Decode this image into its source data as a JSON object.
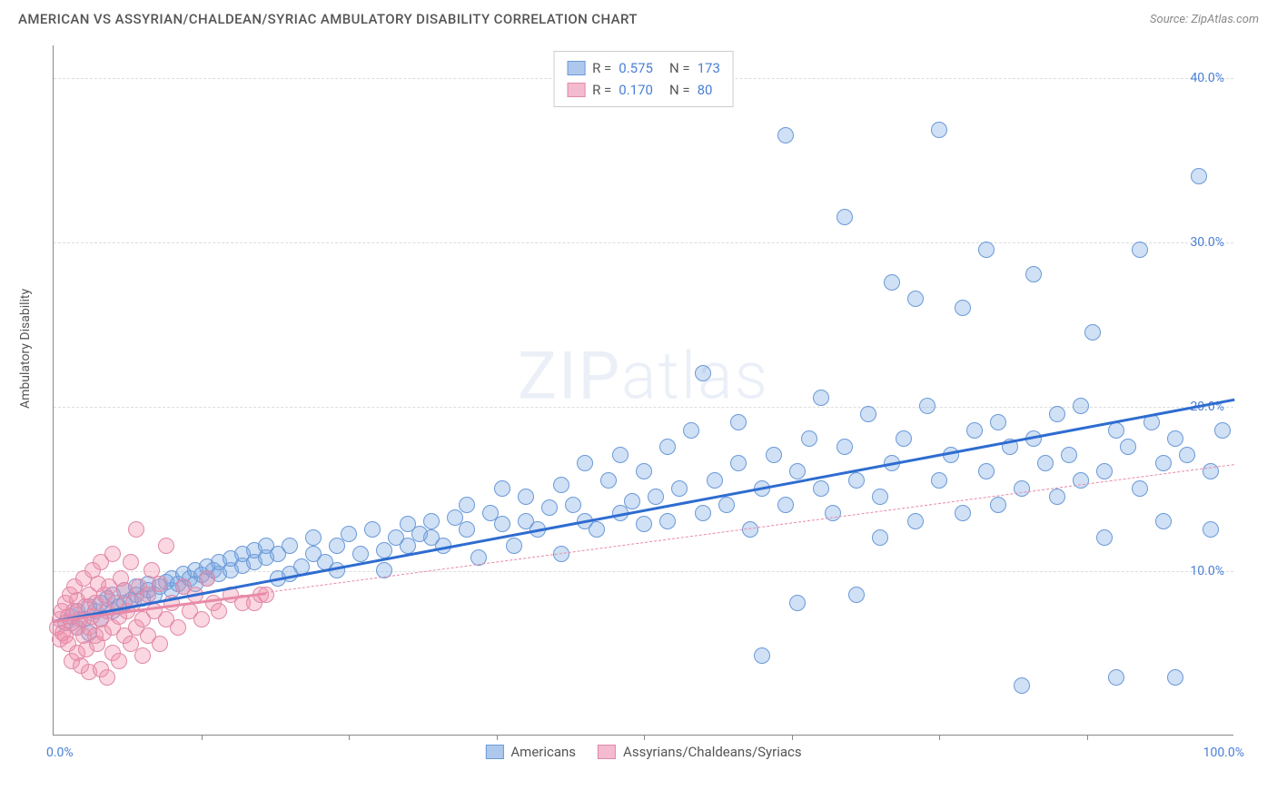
{
  "header": {
    "title": "AMERICAN VS ASSYRIAN/CHALDEAN/SYRIAC AMBULATORY DISABILITY CORRELATION CHART",
    "source_prefix": "Source: ",
    "source": "ZipAtlas.com"
  },
  "ylabel": "Ambulatory Disability",
  "watermark": {
    "bold": "ZIP",
    "thin": "atlas"
  },
  "chart": {
    "type": "scatter",
    "background_color": "#ffffff",
    "grid_color": "#dddddd",
    "axis_color": "#888888",
    "xlim": [
      0,
      100
    ],
    "ylim": [
      0,
      42
    ],
    "xticks": [
      0,
      100
    ],
    "xtick_labels": [
      "0.0%",
      "100.0%"
    ],
    "xtick_minor": [
      12.5,
      25,
      37.5,
      50,
      62.5,
      75,
      87.5
    ],
    "yticks": [
      10,
      20,
      30,
      40
    ],
    "ytick_labels": [
      "10.0%",
      "20.0%",
      "30.0%",
      "40.0%"
    ],
    "tick_label_color": "#4a7fd8",
    "tick_fontsize": 14,
    "marker_radius": 9,
    "marker_stroke_width": 1.2,
    "series": [
      {
        "name": "Americans",
        "label": "Americans",
        "fill": "rgba(120,165,225,0.35)",
        "stroke": "#6a9ad8",
        "legend_fill": "#aec8ed",
        "legend_stroke": "#6a9ad8",
        "R": "0.575",
        "N": "173",
        "trend": {
          "y_at_x0": 7.0,
          "y_at_x100": 20.5,
          "color": "#2e6cd0",
          "width": 3,
          "dash_extend": false
        },
        "points": [
          [
            1,
            6.8
          ],
          [
            1.5,
            7.2
          ],
          [
            2,
            6.5
          ],
          [
            2,
            7.5
          ],
          [
            2.5,
            7.0
          ],
          [
            3,
            7.8
          ],
          [
            3,
            6.2
          ],
          [
            3.5,
            7.5
          ],
          [
            4,
            8.0
          ],
          [
            4,
            7.0
          ],
          [
            4.5,
            8.3
          ],
          [
            5,
            7.5
          ],
          [
            5,
            8.5
          ],
          [
            5.5,
            7.8
          ],
          [
            6,
            8.0
          ],
          [
            6,
            8.8
          ],
          [
            6.5,
            8.2
          ],
          [
            7,
            8.5
          ],
          [
            7,
            9.0
          ],
          [
            7.5,
            8.3
          ],
          [
            8,
            8.8
          ],
          [
            8,
            9.2
          ],
          [
            8.5,
            8.5
          ],
          [
            9,
            9.0
          ],
          [
            9.5,
            9.3
          ],
          [
            10,
            8.8
          ],
          [
            10,
            9.5
          ],
          [
            10.5,
            9.2
          ],
          [
            11,
            9.0
          ],
          [
            11,
            9.8
          ],
          [
            11.5,
            9.5
          ],
          [
            12,
            9.2
          ],
          [
            12,
            10.0
          ],
          [
            12.5,
            9.7
          ],
          [
            13,
            9.5
          ],
          [
            13,
            10.2
          ],
          [
            13.5,
            10.0
          ],
          [
            14,
            9.8
          ],
          [
            14,
            10.5
          ],
          [
            15,
            10.0
          ],
          [
            15,
            10.7
          ],
          [
            16,
            10.3
          ],
          [
            16,
            11.0
          ],
          [
            17,
            10.5
          ],
          [
            17,
            11.2
          ],
          [
            18,
            10.8
          ],
          [
            18,
            11.5
          ],
          [
            19,
            9.5
          ],
          [
            19,
            11.0
          ],
          [
            20,
            9.8
          ],
          [
            20,
            11.5
          ],
          [
            21,
            10.2
          ],
          [
            22,
            11.0
          ],
          [
            22,
            12.0
          ],
          [
            23,
            10.5
          ],
          [
            24,
            11.5
          ],
          [
            24,
            10.0
          ],
          [
            25,
            12.2
          ],
          [
            26,
            11.0
          ],
          [
            27,
            12.5
          ],
          [
            28,
            11.2
          ],
          [
            28,
            10.0
          ],
          [
            29,
            12.0
          ],
          [
            30,
            12.8
          ],
          [
            30,
            11.5
          ],
          [
            31,
            12.2
          ],
          [
            32,
            13.0
          ],
          [
            32,
            12.0
          ],
          [
            33,
            11.5
          ],
          [
            34,
            13.2
          ],
          [
            35,
            12.5
          ],
          [
            35,
            14.0
          ],
          [
            36,
            10.8
          ],
          [
            37,
            13.5
          ],
          [
            38,
            12.8
          ],
          [
            38,
            15.0
          ],
          [
            39,
            11.5
          ],
          [
            40,
            13.0
          ],
          [
            40,
            14.5
          ],
          [
            41,
            12.5
          ],
          [
            42,
            13.8
          ],
          [
            43,
            15.2
          ],
          [
            43,
            11.0
          ],
          [
            44,
            14.0
          ],
          [
            45,
            13.0
          ],
          [
            45,
            16.5
          ],
          [
            46,
            12.5
          ],
          [
            47,
            15.5
          ],
          [
            48,
            13.5
          ],
          [
            48,
            17.0
          ],
          [
            49,
            14.2
          ],
          [
            50,
            12.8
          ],
          [
            50,
            16.0
          ],
          [
            51,
            14.5
          ],
          [
            52,
            17.5
          ],
          [
            52,
            13.0
          ],
          [
            53,
            15.0
          ],
          [
            54,
            18.5
          ],
          [
            55,
            13.5
          ],
          [
            55,
            22.0
          ],
          [
            56,
            15.5
          ],
          [
            57,
            14.0
          ],
          [
            58,
            16.5
          ],
          [
            58,
            19.0
          ],
          [
            59,
            12.5
          ],
          [
            60,
            15.0
          ],
          [
            60,
            4.8
          ],
          [
            61,
            17.0
          ],
          [
            62,
            14.0
          ],
          [
            62,
            36.5
          ],
          [
            63,
            16.0
          ],
          [
            63,
            8.0
          ],
          [
            64,
            18.0
          ],
          [
            65,
            15.0
          ],
          [
            65,
            20.5
          ],
          [
            66,
            13.5
          ],
          [
            67,
            31.5
          ],
          [
            67,
            17.5
          ],
          [
            68,
            15.5
          ],
          [
            68,
            8.5
          ],
          [
            69,
            19.5
          ],
          [
            70,
            14.5
          ],
          [
            70,
            12.0
          ],
          [
            71,
            16.5
          ],
          [
            71,
            27.5
          ],
          [
            72,
            18.0
          ],
          [
            73,
            13.0
          ],
          [
            73,
            26.5
          ],
          [
            74,
            20.0
          ],
          [
            75,
            15.5
          ],
          [
            75,
            36.8
          ],
          [
            76,
            17.0
          ],
          [
            77,
            26.0
          ],
          [
            77,
            13.5
          ],
          [
            78,
            18.5
          ],
          [
            79,
            16.0
          ],
          [
            79,
            29.5
          ],
          [
            80,
            14.0
          ],
          [
            80,
            19.0
          ],
          [
            81,
            17.5
          ],
          [
            82,
            15.0
          ],
          [
            82,
            3.0
          ],
          [
            83,
            18.0
          ],
          [
            83,
            28.0
          ],
          [
            84,
            16.5
          ],
          [
            85,
            19.5
          ],
          [
            85,
            14.5
          ],
          [
            86,
            17.0
          ],
          [
            87,
            20.0
          ],
          [
            87,
            15.5
          ],
          [
            88,
            24.5
          ],
          [
            89,
            16.0
          ],
          [
            89,
            12.0
          ],
          [
            90,
            18.5
          ],
          [
            90,
            3.5
          ],
          [
            91,
            17.5
          ],
          [
            92,
            15.0
          ],
          [
            92,
            29.5
          ],
          [
            93,
            19.0
          ],
          [
            94,
            16.5
          ],
          [
            94,
            13.0
          ],
          [
            95,
            18.0
          ],
          [
            95,
            3.5
          ],
          [
            96,
            17.0
          ],
          [
            97,
            34.0
          ],
          [
            98,
            16.0
          ],
          [
            98,
            12.5
          ],
          [
            99,
            18.5
          ]
        ]
      },
      {
        "name": "Assyrians/Chaldeans/Syriacs",
        "label": "Assyrians/Chaldeans/Syriacs",
        "fill": "rgba(240,140,170,0.35)",
        "stroke": "#e089a8",
        "legend_fill": "#f4bacf",
        "legend_stroke": "#e089a8",
        "R": "0.170",
        "N": "80",
        "trend": {
          "y_at_x0": 7.0,
          "y_at_x100": 16.5,
          "color": "#e88aa8",
          "width": 2.5,
          "dash_extend": true,
          "solid_until_x": 18
        },
        "points": [
          [
            0.3,
            6.5
          ],
          [
            0.5,
            7.0
          ],
          [
            0.5,
            5.8
          ],
          [
            0.7,
            7.5
          ],
          [
            0.8,
            6.2
          ],
          [
            1.0,
            8.0
          ],
          [
            1.0,
            6.0
          ],
          [
            1.2,
            7.2
          ],
          [
            1.2,
            5.5
          ],
          [
            1.4,
            8.5
          ],
          [
            1.5,
            6.8
          ],
          [
            1.5,
            4.5
          ],
          [
            1.7,
            7.5
          ],
          [
            1.8,
            9.0
          ],
          [
            2.0,
            6.5
          ],
          [
            2.0,
            5.0
          ],
          [
            2.0,
            8.2
          ],
          [
            2.2,
            7.0
          ],
          [
            2.3,
            4.2
          ],
          [
            2.5,
            9.5
          ],
          [
            2.5,
            6.0
          ],
          [
            2.7,
            7.8
          ],
          [
            2.8,
            5.2
          ],
          [
            3.0,
            8.5
          ],
          [
            3.0,
            6.5
          ],
          [
            3.0,
            3.8
          ],
          [
            3.2,
            7.2
          ],
          [
            3.3,
            10.0
          ],
          [
            3.5,
            6.0
          ],
          [
            3.5,
            8.0
          ],
          [
            3.7,
            5.5
          ],
          [
            3.8,
            9.2
          ],
          [
            4.0,
            7.0
          ],
          [
            4.0,
            4.0
          ],
          [
            4.0,
            10.5
          ],
          [
            4.2,
            6.2
          ],
          [
            4.3,
            8.5
          ],
          [
            4.5,
            7.5
          ],
          [
            4.5,
            3.5
          ],
          [
            4.7,
            9.0
          ],
          [
            5.0,
            6.5
          ],
          [
            5.0,
            11.0
          ],
          [
            5.0,
            5.0
          ],
          [
            5.2,
            8.0
          ],
          [
            5.5,
            7.2
          ],
          [
            5.5,
            4.5
          ],
          [
            5.7,
            9.5
          ],
          [
            6.0,
            6.0
          ],
          [
            6.0,
            8.8
          ],
          [
            6.2,
            7.5
          ],
          [
            6.5,
            5.5
          ],
          [
            6.5,
            10.5
          ],
          [
            6.8,
            8.0
          ],
          [
            7.0,
            6.5
          ],
          [
            7.0,
            12.5
          ],
          [
            7.2,
            9.0
          ],
          [
            7.5,
            7.0
          ],
          [
            7.5,
            4.8
          ],
          [
            8.0,
            8.5
          ],
          [
            8.0,
            6.0
          ],
          [
            8.3,
            10.0
          ],
          [
            8.5,
            7.5
          ],
          [
            9.0,
            5.5
          ],
          [
            9.0,
            9.2
          ],
          [
            9.5,
            7.0
          ],
          [
            9.5,
            11.5
          ],
          [
            10.0,
            8.0
          ],
          [
            10.5,
            6.5
          ],
          [
            11.0,
            9.0
          ],
          [
            11.5,
            7.5
          ],
          [
            12.0,
            8.5
          ],
          [
            12.5,
            7.0
          ],
          [
            13.0,
            9.5
          ],
          [
            13.5,
            8.0
          ],
          [
            14.0,
            7.5
          ],
          [
            15.0,
            8.5
          ],
          [
            16.0,
            8.0
          ],
          [
            17.0,
            8.0
          ],
          [
            17.5,
            8.5
          ],
          [
            18.0,
            8.5
          ]
        ]
      }
    ],
    "legend_top": {
      "R_label": "R =",
      "N_label": "N ="
    }
  }
}
